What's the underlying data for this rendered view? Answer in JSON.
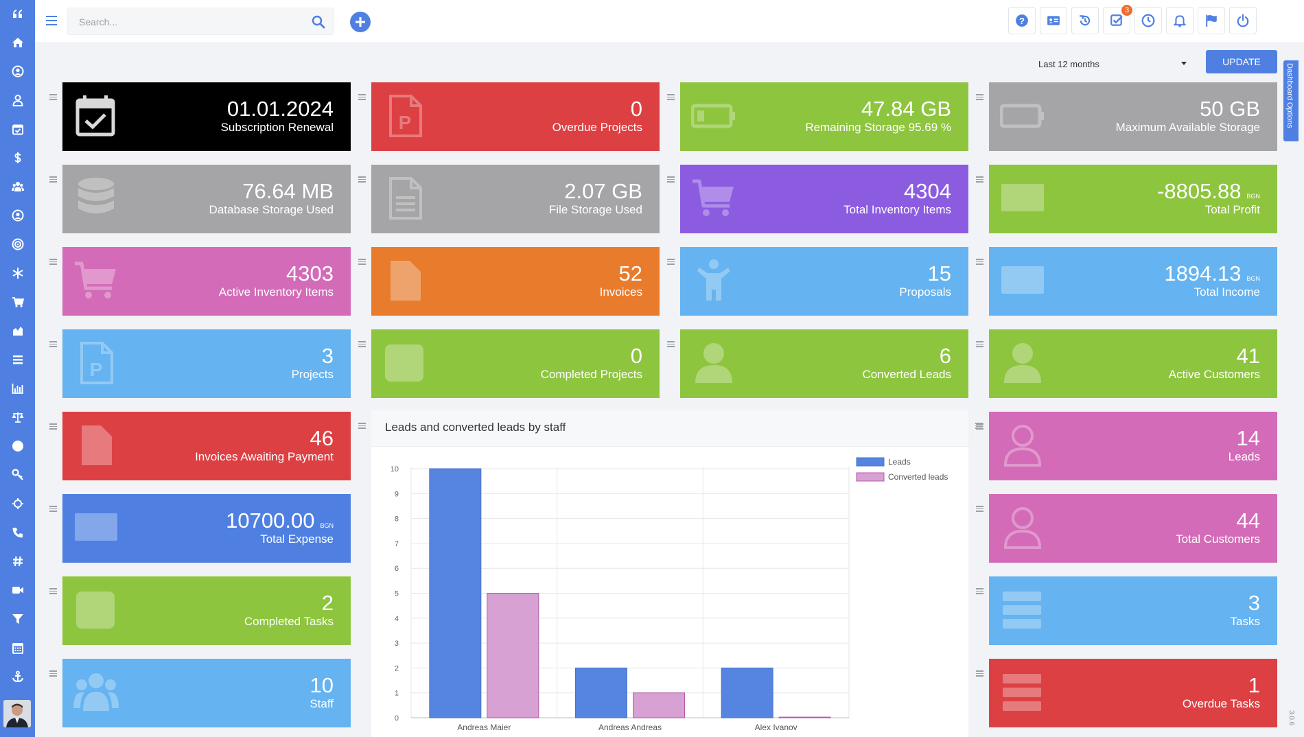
{
  "colors": {
    "accent": "#4f80e1",
    "black": "#000000",
    "red": "#dc4043",
    "green": "#8ec53f",
    "gray": "#a5a5a7",
    "purple": "#8c5ce0",
    "pink": "#d36bb8",
    "orange": "#e97b2d",
    "lightblue": "#65b3f0",
    "blue": "#4f80e1"
  },
  "sidebar": {
    "items": [
      {
        "icon": "quote-icon"
      },
      {
        "icon": "home-icon"
      },
      {
        "icon": "user-circle-icon"
      },
      {
        "icon": "user-icon"
      },
      {
        "icon": "calendar-check-icon"
      },
      {
        "icon": "dollar-icon"
      },
      {
        "icon": "users-icon"
      },
      {
        "icon": "user-circle-icon"
      },
      {
        "icon": "target-icon"
      },
      {
        "icon": "snowflake-icon"
      },
      {
        "icon": "cart-icon"
      },
      {
        "icon": "area-chart-icon"
      },
      {
        "icon": "list-icon"
      },
      {
        "icon": "bar-chart-icon"
      },
      {
        "icon": "balance-scale-icon"
      },
      {
        "icon": "help-icon"
      },
      {
        "icon": "key-icon"
      },
      {
        "icon": "crosshair-icon"
      },
      {
        "icon": "phone-icon"
      },
      {
        "icon": "hashtag-icon"
      },
      {
        "icon": "video-icon"
      },
      {
        "icon": "filter-icon"
      },
      {
        "icon": "calendar-icon"
      },
      {
        "icon": "anchor-icon"
      }
    ]
  },
  "header": {
    "search_placeholder": "Search...",
    "buttons": [
      {
        "icon": "help-icon"
      },
      {
        "icon": "id-card-icon"
      },
      {
        "icon": "history-icon"
      },
      {
        "icon": "tasks-icon",
        "badge": "3"
      },
      {
        "icon": "clock-icon"
      },
      {
        "icon": "bell-icon"
      },
      {
        "icon": "flag-icon"
      },
      {
        "icon": "power-icon"
      }
    ]
  },
  "filter": {
    "period": "Last 12 months",
    "update_label": "UPDATE"
  },
  "dashboard_options_label": "Dashboard Options",
  "version": "3.0.6",
  "cards": [
    {
      "value": "01.01.2024",
      "label": "Subscription Renewal",
      "color": "black",
      "icon": "calendar-check-icon"
    },
    {
      "value": "0",
      "label": "Overdue Projects",
      "color": "red",
      "icon": "project-file-icon"
    },
    {
      "value": "47.84 GB",
      "label": "Remaining Storage 95.69 %",
      "color": "green",
      "icon": "battery-low-icon"
    },
    {
      "value": "50 GB",
      "label": "Maximum Available Storage",
      "color": "gray",
      "icon": "battery-empty-icon"
    },
    {
      "value": "76.64 MB",
      "label": "Database Storage Used",
      "color": "gray",
      "icon": "database-icon"
    },
    {
      "value": "2.07 GB",
      "label": "File Storage Used",
      "color": "gray",
      "icon": "file-text-icon"
    },
    {
      "value": "4304",
      "label": "Total Inventory Items",
      "color": "purple",
      "icon": "cart-icon"
    },
    {
      "value": "-8805.88",
      "currency": "BGN",
      "label": "Total Profit",
      "color": "green",
      "icon": "money-icon"
    },
    {
      "value": "4303",
      "label": "Active Inventory Items",
      "color": "pink",
      "icon": "cart-icon"
    },
    {
      "value": "52",
      "label": "Invoices",
      "color": "orange",
      "icon": "file-icon"
    },
    {
      "value": "15",
      "label": "Proposals",
      "color": "lightblue",
      "icon": "person-icon"
    },
    {
      "value": "1894.13",
      "currency": "BGN",
      "label": "Total Income",
      "color": "lightblue",
      "icon": "money-icon"
    },
    {
      "value": "3",
      "label": "Projects",
      "color": "lightblue",
      "icon": "project-file-icon"
    },
    {
      "value": "0",
      "label": "Completed Projects",
      "color": "green",
      "icon": "check-square-icon"
    },
    {
      "value": "6",
      "label": "Converted Leads",
      "color": "green",
      "icon": "user-icon"
    },
    {
      "value": "41",
      "label": "Active Customers",
      "color": "green",
      "icon": "user-icon"
    },
    {
      "value": "46",
      "label": "Invoices Awaiting Payment",
      "color": "red",
      "icon": "file-icon"
    },
    {
      "value": "14",
      "label": "Leads",
      "color": "pink",
      "icon": "user-outline-icon"
    },
    {
      "value": "10700.00",
      "currency": "BGN",
      "label": "Total Expense",
      "color": "blue",
      "icon": "money-icon"
    },
    {
      "value": "44",
      "label": "Total Customers",
      "color": "pink",
      "icon": "user-outline-icon"
    },
    {
      "value": "2",
      "label": "Completed Tasks",
      "color": "green",
      "icon": "check-square-icon"
    },
    {
      "value": "3",
      "label": "Tasks",
      "color": "lightblue",
      "icon": "tasks-list-icon"
    },
    {
      "value": "10",
      "label": "Staff",
      "color": "lightblue",
      "icon": "users-icon"
    },
    {
      "value": "1",
      "label": "Overdue Tasks",
      "color": "red",
      "icon": "tasks-list-icon"
    }
  ],
  "chart_panel": {
    "title": "Leads and converted leads by staff"
  },
  "chart_data": {
    "type": "bar",
    "categories": [
      "Andreas Maier",
      "Andreas Andreas",
      "Alex Ivanov"
    ],
    "series": [
      {
        "name": "Leads",
        "values": [
          10,
          2,
          2
        ],
        "color": "#5585e0"
      },
      {
        "name": "Converted leads",
        "values": [
          5,
          1,
          0
        ],
        "color": "#d7a1d3"
      }
    ],
    "ylim": [
      0,
      10
    ],
    "yticks": [
      "0",
      "1",
      "2",
      "3",
      "4",
      "5",
      "6",
      "7",
      "8",
      "9",
      "10"
    ],
    "grid": true,
    "legend": "top-right"
  }
}
